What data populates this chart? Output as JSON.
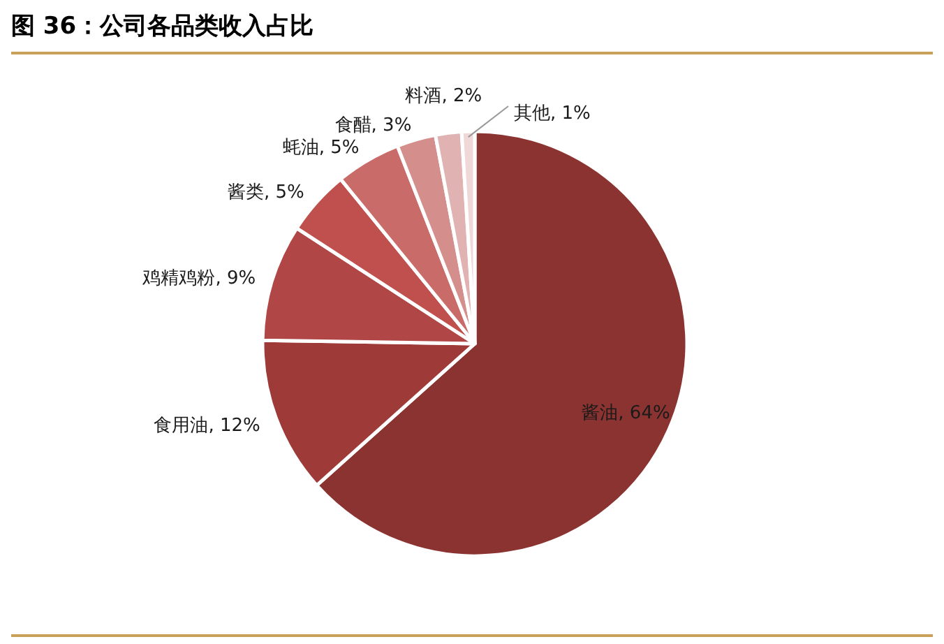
{
  "chart_data": {
    "type": "pie",
    "title": "图 36：公司各品类收入占比",
    "categories": [
      "酱油",
      "食用油",
      "鸡精鸡粉",
      "酱类",
      "蚝油",
      "食醋",
      "料酒",
      "其他"
    ],
    "values": [
      64,
      12,
      9,
      5,
      5,
      3,
      2,
      1
    ],
    "value_labels": [
      "64%",
      "12%",
      "9%",
      "5%",
      "5%",
      "3%",
      "2%",
      "1%"
    ],
    "colors": [
      "#8b3331",
      "#9e3b39",
      "#b04645",
      "#c0504d",
      "#c96b68",
      "#d48f8d",
      "#e0b2b1",
      "#efd8d7"
    ]
  }
}
